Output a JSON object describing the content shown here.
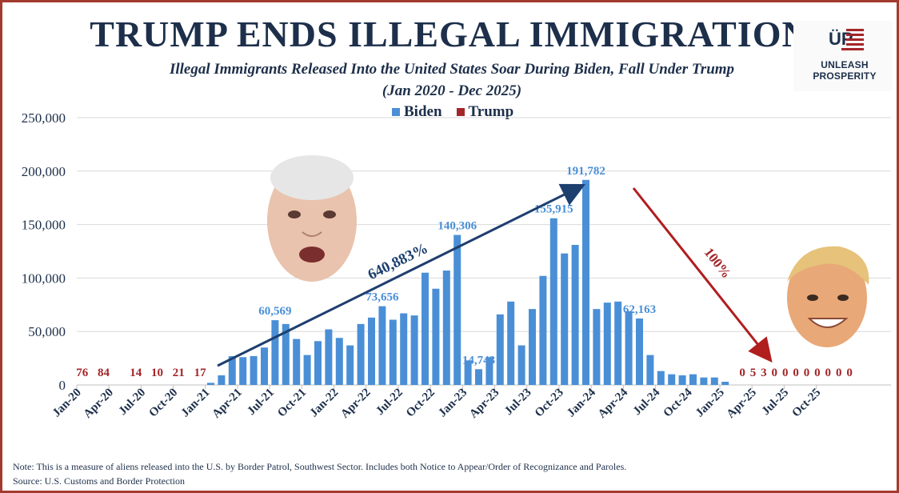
{
  "header": {
    "title": "TRUMP ENDS ILLEGAL IMMIGRATION",
    "subtitle": "Illegal Immigrants Released Into the United States Soar During Biden, Fall Under Trump",
    "range": "(Jan 2020 - Dec 2025)"
  },
  "logo": {
    "mark": "ÜP",
    "text": "UNLEASH PROSPERITY"
  },
  "footer": {
    "note": "Note: This is a measure of aliens released into the U.S. by Border Patrol, Southwest Sector. Includes both Notice to Appear/Order of Recognizance and Paroles.",
    "source": "Source: U.S. Customs and Border Protection"
  },
  "colors": {
    "biden": "#4a8fd6",
    "trump": "#a3262a",
    "title": "#1d2f4a",
    "frame": "#a33a2e",
    "grid": "#d9d9d9"
  },
  "chart_data": {
    "type": "bar",
    "legend": [
      {
        "name": "Biden",
        "color": "#4a8fd6"
      },
      {
        "name": "Trump",
        "color": "#a3262a"
      }
    ],
    "legend_position": "top-center",
    "ylim": [
      0,
      250000
    ],
    "yticks": [
      0,
      50000,
      100000,
      150000,
      200000,
      250000
    ],
    "ytick_labels": [
      "0",
      "50,000",
      "100,000",
      "150,000",
      "200,000",
      "250,000"
    ],
    "grid": true,
    "xtick_labels": [
      "Jan-20",
      "Apr-20",
      "Jul-20",
      "Oct-20",
      "Jan-21",
      "Apr-21",
      "Jul-21",
      "Oct-21",
      "Jan-22",
      "Apr-22",
      "Jul-22",
      "Oct-22",
      "Jan-23",
      "Apr-23",
      "Jul-23",
      "Oct-23",
      "Jan-24",
      "Apr-24",
      "Jul-24",
      "Oct-24",
      "Jan-25",
      "Apr-25",
      "Jul-25",
      "Oct-25"
    ],
    "months": [
      "Jan-20",
      "Feb-20",
      "Mar-20",
      "Apr-20",
      "May-20",
      "Jun-20",
      "Jul-20",
      "Aug-20",
      "Sep-20",
      "Oct-20",
      "Nov-20",
      "Dec-20",
      "Jan-21",
      "Feb-21",
      "Mar-21",
      "Apr-21",
      "May-21",
      "Jun-21",
      "Jul-21",
      "Aug-21",
      "Sep-21",
      "Oct-21",
      "Nov-21",
      "Dec-21",
      "Jan-22",
      "Feb-22",
      "Mar-22",
      "Apr-22",
      "May-22",
      "Jun-22",
      "Jul-22",
      "Aug-22",
      "Sep-22",
      "Oct-22",
      "Nov-22",
      "Dec-22",
      "Jan-23",
      "Feb-23",
      "Mar-23",
      "Apr-23",
      "May-23",
      "Jun-23",
      "Jul-23",
      "Aug-23",
      "Sep-23",
      "Oct-23",
      "Nov-23",
      "Dec-23",
      "Jan-24",
      "Feb-24",
      "Mar-24",
      "Apr-24",
      "May-24",
      "Jun-24",
      "Jul-24",
      "Aug-24",
      "Sep-24",
      "Oct-24",
      "Nov-24",
      "Dec-24",
      "Jan-25",
      "Feb-25",
      "Mar-25",
      "Apr-25",
      "May-25",
      "Jun-25",
      "Jul-25",
      "Aug-25",
      "Sep-25",
      "Oct-25",
      "Nov-25",
      "Dec-25"
    ],
    "series": [
      {
        "name": "Trump",
        "period": "Jan-20 to Dec-20",
        "values": [
          76,
          84,
          14,
          10,
          21,
          17
        ],
        "labels": [
          "76",
          "84",
          "14",
          "10",
          "21",
          "17"
        ],
        "label_months": [
          "Jan-20",
          "Mar-20",
          "Jun-20",
          "Aug-20",
          "Oct-20",
          "Dec-20"
        ]
      },
      {
        "name": "Biden",
        "period": "Jan-21 to Jan-25",
        "values": [
          2000,
          9000,
          27000,
          26000,
          27000,
          35000,
          60569,
          57000,
          43000,
          28000,
          41000,
          52000,
          44000,
          37000,
          57000,
          63000,
          73656,
          61000,
          67000,
          65000,
          105000,
          90000,
          107000,
          140306,
          23000,
          14743,
          26000,
          66000,
          78000,
          37000,
          71000,
          102000,
          155915,
          123000,
          131000,
          191782,
          71000,
          77000,
          78000,
          69000,
          62163,
          28000,
          13000,
          10000,
          9000,
          10000,
          7000,
          7000,
          3000
        ]
      },
      {
        "name": "Trump",
        "period": "Feb-25 to Dec-25",
        "values": [
          0,
          5,
          3,
          0,
          0,
          0,
          0,
          0,
          0,
          0,
          0
        ],
        "labels": [
          "0",
          "5",
          "3",
          "0",
          "0",
          "0",
          "0",
          "0",
          "0",
          "0",
          "0"
        ]
      }
    ],
    "data_labels": [
      {
        "month": "Jul-21",
        "text": "60,569"
      },
      {
        "month": "May-22",
        "text": "73,656"
      },
      {
        "month": "Dec-22",
        "text": "140,306"
      },
      {
        "month": "Feb-23",
        "text": "14,743"
      },
      {
        "month": "Sep-23",
        "text": "155,915"
      },
      {
        "month": "Dec-23",
        "text": "191,782"
      },
      {
        "month": "May-24",
        "text": "62,163"
      }
    ],
    "annotations": [
      {
        "text": "640,883%",
        "color": "#1d3f6e",
        "kind": "arrow-up"
      },
      {
        "text": "100%",
        "color": "#a3262a",
        "kind": "arrow-down"
      }
    ]
  }
}
